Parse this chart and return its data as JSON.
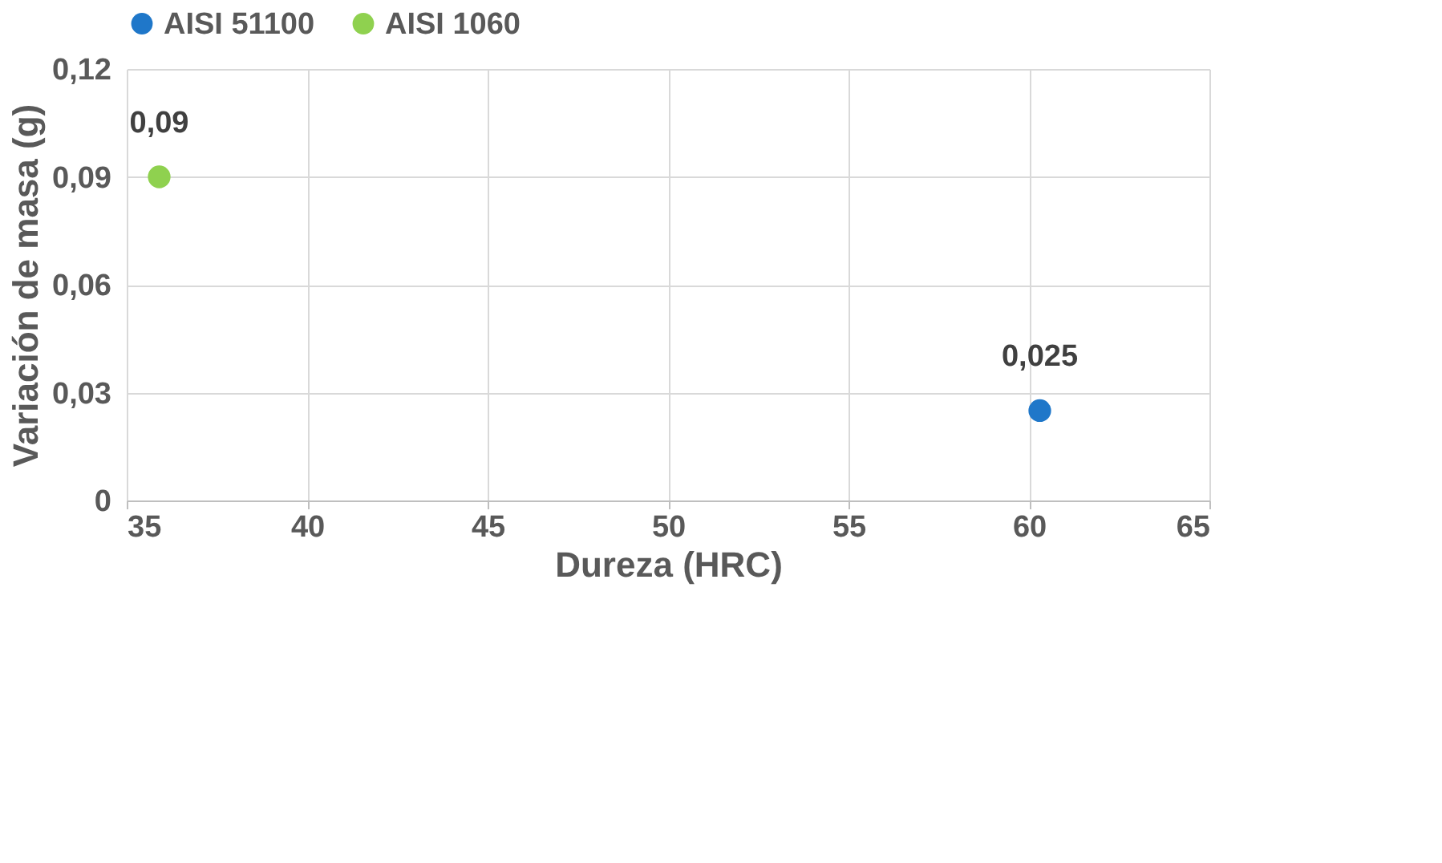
{
  "chart_data": {
    "type": "scatter",
    "xlabel": "Dureza (HRC)",
    "ylabel": "Variación de masa (g)",
    "series": [
      {
        "name": "AISI 51100",
        "color": "#1f77c9",
        "x": [
          60.3
        ],
        "values": [
          0.025
        ],
        "value_labels": [
          "0,025"
        ]
      },
      {
        "name": "AISI 1060",
        "color": "#8fd14f",
        "x": [
          35.9
        ],
        "values": [
          0.09
        ],
        "value_labels": [
          "0,09"
        ]
      }
    ],
    "xlim": [
      35,
      65
    ],
    "xticks": [
      35,
      40,
      45,
      50,
      55,
      60,
      65
    ],
    "ylim": [
      0,
      0.12
    ],
    "yticks": [
      {
        "value": 0,
        "label": "0"
      },
      {
        "value": 0.03,
        "label": "0,03"
      },
      {
        "value": 0.06,
        "label": "0,06"
      },
      {
        "value": 0.09,
        "label": "0,09"
      },
      {
        "value": 0.12,
        "label": "0,12"
      }
    ],
    "grid": true,
    "legend": "top",
    "marker": "circle"
  }
}
